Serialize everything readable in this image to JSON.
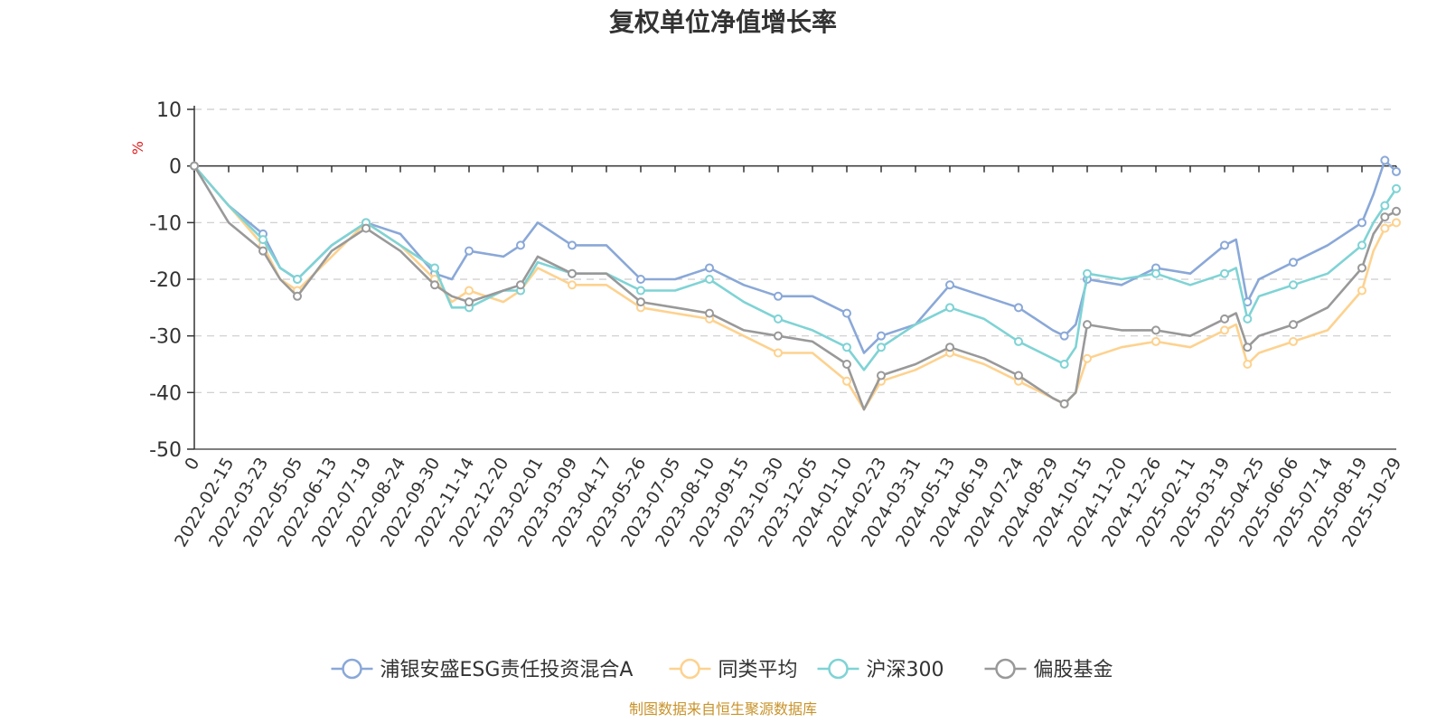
{
  "chart_data": {
    "type": "line",
    "title": "复权单位净值增长率",
    "ylabel": "%",
    "ylim": [
      -50,
      10
    ],
    "yticks": [
      10,
      0,
      -10,
      -20,
      -30,
      -40,
      -50
    ],
    "x_ticks": [
      "0",
      "2022-02-15",
      "2022-03-23",
      "2022-05-05",
      "2022-06-13",
      "2022-07-19",
      "2022-08-24",
      "2022-09-30",
      "2022-11-14",
      "2022-12-20",
      "2023-02-01",
      "2023-03-09",
      "2023-04-17",
      "2023-05-26",
      "2023-07-05",
      "2023-08-10",
      "2023-09-15",
      "2023-10-30",
      "2023-12-05",
      "2024-01-10",
      "2024-02-23",
      "2024-03-31",
      "2024-05-13",
      "2024-06-19",
      "2024-07-24",
      "2024-08-29",
      "2024-10-15",
      "2024-11-20",
      "2024-12-26",
      "2025-02-11",
      "2025-03-19",
      "2025-04-25",
      "2025-06-06",
      "2025-07-14",
      "2025-08-19",
      "2025-10-29"
    ],
    "x_samples": [
      "0",
      "2022-02-15",
      "2022-03-23",
      "2022-04-14",
      "2022-05-05",
      "2022-06-13",
      "2022-07-19",
      "2022-08-24",
      "2022-09-30",
      "2022-10-25",
      "2022-11-14",
      "2022-12-20",
      "2023-01-10",
      "2023-02-01",
      "2023-03-09",
      "2023-04-17",
      "2023-05-26",
      "2023-07-05",
      "2023-08-10",
      "2023-09-15",
      "2023-10-30",
      "2023-12-05",
      "2024-01-10",
      "2024-02-05",
      "2024-02-23",
      "2024-03-31",
      "2024-05-13",
      "2024-06-19",
      "2024-07-24",
      "2024-08-29",
      "2024-09-30",
      "2024-10-08",
      "2024-10-15",
      "2024-11-20",
      "2024-12-26",
      "2025-02-11",
      "2025-03-19",
      "2025-04-03",
      "2025-04-08",
      "2025-04-25",
      "2025-06-06",
      "2025-07-14",
      "2025-08-19",
      "2025-09-20",
      "2025-10-10",
      "2025-10-29"
    ],
    "series": [
      {
        "name": "浦银安盛ESG责任投资混合A",
        "color": "#8aa8d8",
        "values": [
          0,
          -7,
          -12,
          -18,
          -20,
          -14,
          -10,
          -12,
          -19,
          -20,
          -15,
          -16,
          -14,
          -10,
          -14,
          -14,
          -20,
          -20,
          -18,
          -21,
          -23,
          -23,
          -26,
          -33,
          -30,
          -28,
          -21,
          -23,
          -25,
          -29,
          -30,
          -28,
          -20,
          -21,
          -18,
          -19,
          -14,
          -13,
          -24,
          -20,
          -17,
          -14,
          -10,
          -5,
          1,
          -1
        ]
      },
      {
        "name": "同类平均",
        "color": "#fdd28f",
        "values": [
          0,
          -7,
          -14,
          -20,
          -22,
          -16,
          -10,
          -14,
          -20,
          -24,
          -22,
          -24,
          -22,
          -18,
          -21,
          -21,
          -25,
          -26,
          -27,
          -30,
          -33,
          -33,
          -38,
          -43,
          -38,
          -36,
          -33,
          -35,
          -38,
          -41,
          -42,
          -40,
          -34,
          -32,
          -31,
          -32,
          -29,
          -28,
          -35,
          -33,
          -31,
          -29,
          -22,
          -15,
          -11,
          -10
        ]
      },
      {
        "name": "沪深300",
        "color": "#7fd3d5",
        "values": [
          0,
          -7,
          -13,
          -18,
          -20,
          -14,
          -10,
          -14,
          -18,
          -25,
          -25,
          -22,
          -22,
          -17,
          -19,
          -19,
          -22,
          -22,
          -20,
          -24,
          -27,
          -29,
          -32,
          -36,
          -32,
          -28,
          -25,
          -27,
          -31,
          -34,
          -35,
          -32,
          -19,
          -20,
          -19,
          -21,
          -19,
          -18,
          -27,
          -23,
          -21,
          -19,
          -14,
          -10,
          -7,
          -4
        ]
      },
      {
        "name": "偏股基金",
        "color": "#999999",
        "values": [
          0,
          -10,
          -15,
          -20,
          -23,
          -15,
          -11,
          -15,
          -21,
          -23,
          -24,
          -22,
          -21,
          -16,
          -19,
          -19,
          -24,
          -25,
          -26,
          -29,
          -30,
          -31,
          -35,
          -43,
          -37,
          -35,
          -32,
          -34,
          -37,
          -41,
          -42,
          -40,
          -28,
          -29,
          -29,
          -30,
          -27,
          -26,
          -32,
          -30,
          -28,
          -25,
          -18,
          -12,
          -9,
          -8
        ]
      }
    ],
    "source_note": "制图数据来自恒生聚源数据库",
    "legend_position": "bottom",
    "grid": true
  }
}
